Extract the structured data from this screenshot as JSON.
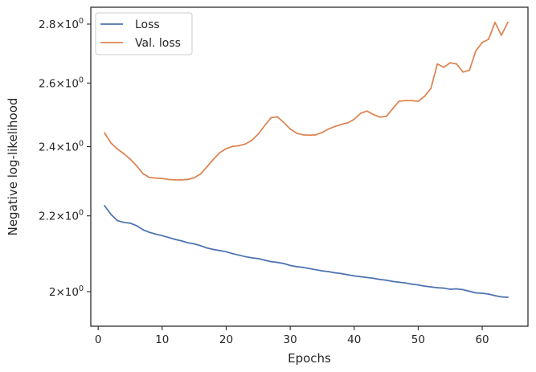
{
  "chart_data": {
    "type": "line",
    "xlabel": "Epochs",
    "ylabel": "Negative log-likelihood",
    "xlim": [
      -1.15,
      67.15
    ],
    "ylim": [
      1.915,
      2.86
    ],
    "yscale": "log",
    "grid": false,
    "legend_position": "top-left",
    "x_ticks": [
      0,
      10,
      20,
      30,
      40,
      50,
      60
    ],
    "x_tick_labels": [
      "0",
      "10",
      "20",
      "30",
      "40",
      "50",
      "60"
    ],
    "y_ticks": [
      2.0,
      2.2,
      2.4,
      2.6,
      2.8
    ],
    "y_tick_labels": [
      {
        "base": "2",
        "exp": "0"
      },
      {
        "base": "2.2",
        "exp": "0"
      },
      {
        "base": "2.4",
        "exp": "0"
      },
      {
        "base": "2.6",
        "exp": "0"
      },
      {
        "base": "2.8",
        "exp": "0"
      }
    ],
    "y_tick_multiplier": "×10",
    "x": [
      1,
      2,
      3,
      4,
      5,
      6,
      7,
      8,
      9,
      10,
      11,
      12,
      13,
      14,
      15,
      16,
      17,
      18,
      19,
      20,
      21,
      22,
      23,
      24,
      25,
      26,
      27,
      28,
      29,
      30,
      31,
      32,
      33,
      34,
      35,
      36,
      37,
      38,
      39,
      40,
      41,
      42,
      43,
      44,
      45,
      46,
      47,
      48,
      49,
      50,
      51,
      52,
      53,
      54,
      55,
      56,
      57,
      58,
      59,
      60,
      61,
      62,
      63,
      64
    ],
    "series": [
      {
        "name": "Loss",
        "color": "#4c72b0",
        "values": [
          2.228,
          2.204,
          2.187,
          2.182,
          2.18,
          2.173,
          2.162,
          2.155,
          2.15,
          2.146,
          2.141,
          2.136,
          2.132,
          2.127,
          2.124,
          2.119,
          2.113,
          2.109,
          2.106,
          2.103,
          2.098,
          2.094,
          2.09,
          2.087,
          2.085,
          2.081,
          2.077,
          2.075,
          2.072,
          2.067,
          2.064,
          2.062,
          2.059,
          2.056,
          2.053,
          2.051,
          2.048,
          2.046,
          2.043,
          2.04,
          2.038,
          2.036,
          2.034,
          2.031,
          2.029,
          2.026,
          2.024,
          2.022,
          2.019,
          2.017,
          2.014,
          2.012,
          2.01,
          2.009,
          2.006,
          2.007,
          2.005,
          2.001,
          1.997,
          1.996,
          1.994,
          1.99,
          1.987,
          1.986
        ]
      },
      {
        "name": "Val. loss",
        "color": "#dd8452",
        "values": [
          2.442,
          2.411,
          2.393,
          2.379,
          2.363,
          2.343,
          2.32,
          2.309,
          2.307,
          2.306,
          2.303,
          2.302,
          2.302,
          2.303,
          2.308,
          2.319,
          2.34,
          2.362,
          2.382,
          2.394,
          2.401,
          2.403,
          2.408,
          2.419,
          2.438,
          2.464,
          2.489,
          2.492,
          2.474,
          2.454,
          2.441,
          2.436,
          2.435,
          2.436,
          2.443,
          2.454,
          2.462,
          2.468,
          2.473,
          2.484,
          2.503,
          2.51,
          2.499,
          2.491,
          2.493,
          2.517,
          2.541,
          2.543,
          2.543,
          2.541,
          2.557,
          2.583,
          2.663,
          2.652,
          2.667,
          2.663,
          2.636,
          2.642,
          2.707,
          2.736,
          2.747,
          2.806,
          2.761,
          2.806
        ]
      }
    ]
  }
}
